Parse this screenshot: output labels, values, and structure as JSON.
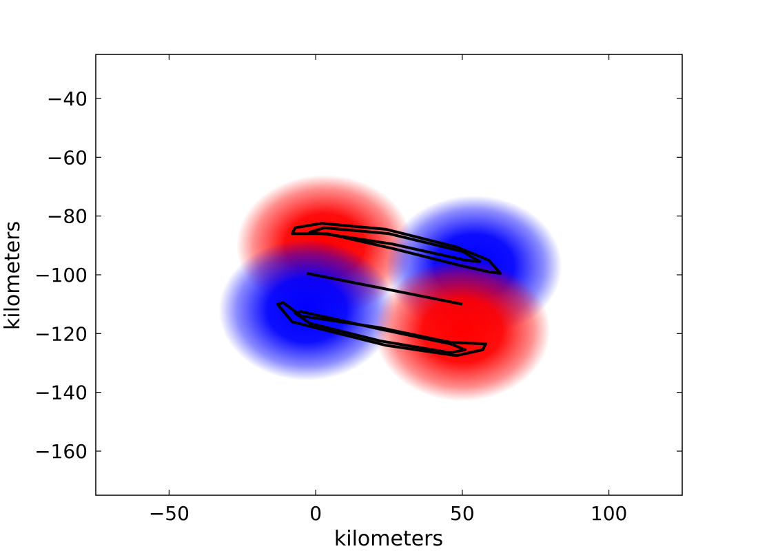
{
  "chart_data": {
    "type": "heatmap",
    "xlabel": "kilometers",
    "ylabel": "kilometers",
    "xlim": [
      -75,
      125
    ],
    "ylim": [
      -175,
      -25
    ],
    "x_ticks": [
      -50,
      0,
      50,
      100
    ],
    "y_ticks": [
      -40,
      -60,
      -80,
      -100,
      -120,
      -140,
      -160
    ],
    "x_tick_labels": [
      "−50",
      "0",
      "50",
      "100"
    ],
    "y_tick_labels": [
      "−40",
      "−60",
      "−80",
      "−100",
      "−120",
      "−140",
      "−160"
    ],
    "grid": false,
    "colormap": "bwr",
    "colors": {
      "positive": "#ff0000",
      "negative": "#0000ff",
      "zero": "#ffffff",
      "contour": "#000000"
    },
    "lobes": [
      {
        "name": "upper-left-red",
        "sign": 1,
        "cx": 3,
        "cy": -90,
        "rx": 30,
        "ry": 24
      },
      {
        "name": "lower-left-blue",
        "sign": -1,
        "cx": -3,
        "cy": -112,
        "rx": 30,
        "ry": 24
      },
      {
        "name": "upper-right-blue",
        "sign": -1,
        "cx": 54,
        "cy": -97,
        "rx": 30,
        "ry": 24
      },
      {
        "name": "lower-right-red",
        "sign": 1,
        "cx": 50,
        "cy": -119,
        "rx": 30,
        "ry": 24
      }
    ],
    "fault_line": [
      [
        -3,
        -99.5
      ],
      [
        50,
        -110
      ]
    ],
    "contours": [
      {
        "name": "upper-outer",
        "points": [
          [
            -8,
            -86
          ],
          [
            -7,
            -84
          ],
          [
            2,
            -82.5
          ],
          [
            24,
            -84.5
          ],
          [
            48,
            -90.5
          ],
          [
            59,
            -95
          ],
          [
            63,
            -99.5
          ],
          [
            59,
            -99
          ],
          [
            50,
            -97
          ],
          [
            26,
            -91
          ],
          [
            4,
            -86
          ],
          [
            -8,
            -86
          ]
        ]
      },
      {
        "name": "upper-inner",
        "points": [
          [
            -2,
            -85.5
          ],
          [
            3,
            -84
          ],
          [
            25,
            -86
          ],
          [
            50,
            -92
          ],
          [
            56,
            -95.5
          ],
          [
            51,
            -95
          ],
          [
            26,
            -89.5
          ],
          [
            4,
            -86.2
          ],
          [
            -2,
            -85.5
          ]
        ]
      },
      {
        "name": "lower-outer",
        "points": [
          [
            -13,
            -110
          ],
          [
            -11,
            -109.5
          ],
          [
            -5,
            -114
          ],
          [
            22,
            -118
          ],
          [
            46,
            -123
          ],
          [
            58,
            -123.5
          ],
          [
            57,
            -125.5
          ],
          [
            48,
            -127.5
          ],
          [
            24,
            -124
          ],
          [
            0,
            -118
          ],
          [
            -8,
            -116
          ],
          [
            -13,
            -110
          ]
        ]
      },
      {
        "name": "lower-inner",
        "points": [
          [
            -7,
            -113
          ],
          [
            -5,
            -112.5
          ],
          [
            22,
            -118.5
          ],
          [
            46,
            -123.5
          ],
          [
            51,
            -125.5
          ],
          [
            46,
            -126.5
          ],
          [
            22,
            -122.5
          ],
          [
            -2,
            -116.5
          ],
          [
            -7,
            -113
          ]
        ]
      }
    ]
  }
}
